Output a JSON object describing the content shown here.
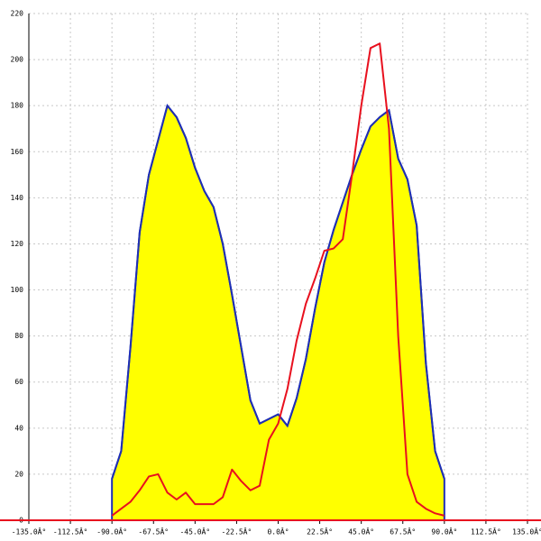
{
  "chart_data": {
    "type": "line",
    "x": [
      -90,
      -85,
      -80,
      -75,
      -70,
      -65,
      -60,
      -55,
      -50,
      -45,
      -40,
      -35,
      -30,
      -25,
      -20,
      -15,
      -10,
      -5,
      0,
      5,
      10,
      15,
      20,
      25,
      30,
      35,
      40,
      45,
      50,
      55,
      60,
      65,
      70,
      75,
      80,
      85,
      90
    ],
    "series": [
      {
        "color": "#1f2fb4",
        "fill": "#ffff00",
        "values": [
          18,
          30,
          75,
          125,
          150,
          165,
          180,
          175,
          166,
          153,
          143,
          136,
          120,
          98,
          75,
          52,
          42,
          44,
          46,
          41,
          53,
          70,
          92,
          112,
          126,
          138,
          150,
          161,
          171,
          175,
          178,
          157,
          148,
          128,
          68,
          30,
          18
        ]
      },
      {
        "color": "#e8101e",
        "values": [
          2,
          5,
          8,
          13,
          19,
          20,
          12,
          9,
          12,
          7,
          7,
          7,
          10,
          22,
          17,
          13,
          15,
          35,
          42,
          57,
          78,
          94,
          105,
          117,
          118,
          122,
          150,
          180,
          205,
          207,
          170,
          80,
          20,
          8,
          5,
          3,
          2
        ]
      }
    ],
    "xlim": [
      -135,
      135
    ],
    "xticks": [
      {
        "value": -135,
        "label": "-135.0Â°"
      },
      {
        "value": -112.5,
        "label": "-112.5Â°"
      },
      {
        "value": -90,
        "label": "-90.0Â°"
      },
      {
        "value": -67.5,
        "label": "-67.5Â°"
      },
      {
        "value": -45,
        "label": "-45.0Â°"
      },
      {
        "value": -22.5,
        "label": "-22.5Â°"
      },
      {
        "value": 0,
        "label": "0.0Â°"
      },
      {
        "value": 22.5,
        "label": "22.5Â°"
      },
      {
        "value": 45,
        "label": "45.0Â°"
      },
      {
        "value": 67.5,
        "label": "67.5Â°"
      },
      {
        "value": 90,
        "label": "90.0Â°"
      },
      {
        "value": 112.5,
        "label": "112.5Â°"
      },
      {
        "value": 135,
        "label": "135.0Â°"
      }
    ],
    "ylim": [
      0,
      220
    ],
    "yticks": [
      0,
      20,
      40,
      60,
      80,
      100,
      120,
      140,
      160,
      180,
      200,
      220
    ],
    "grid": true
  }
}
